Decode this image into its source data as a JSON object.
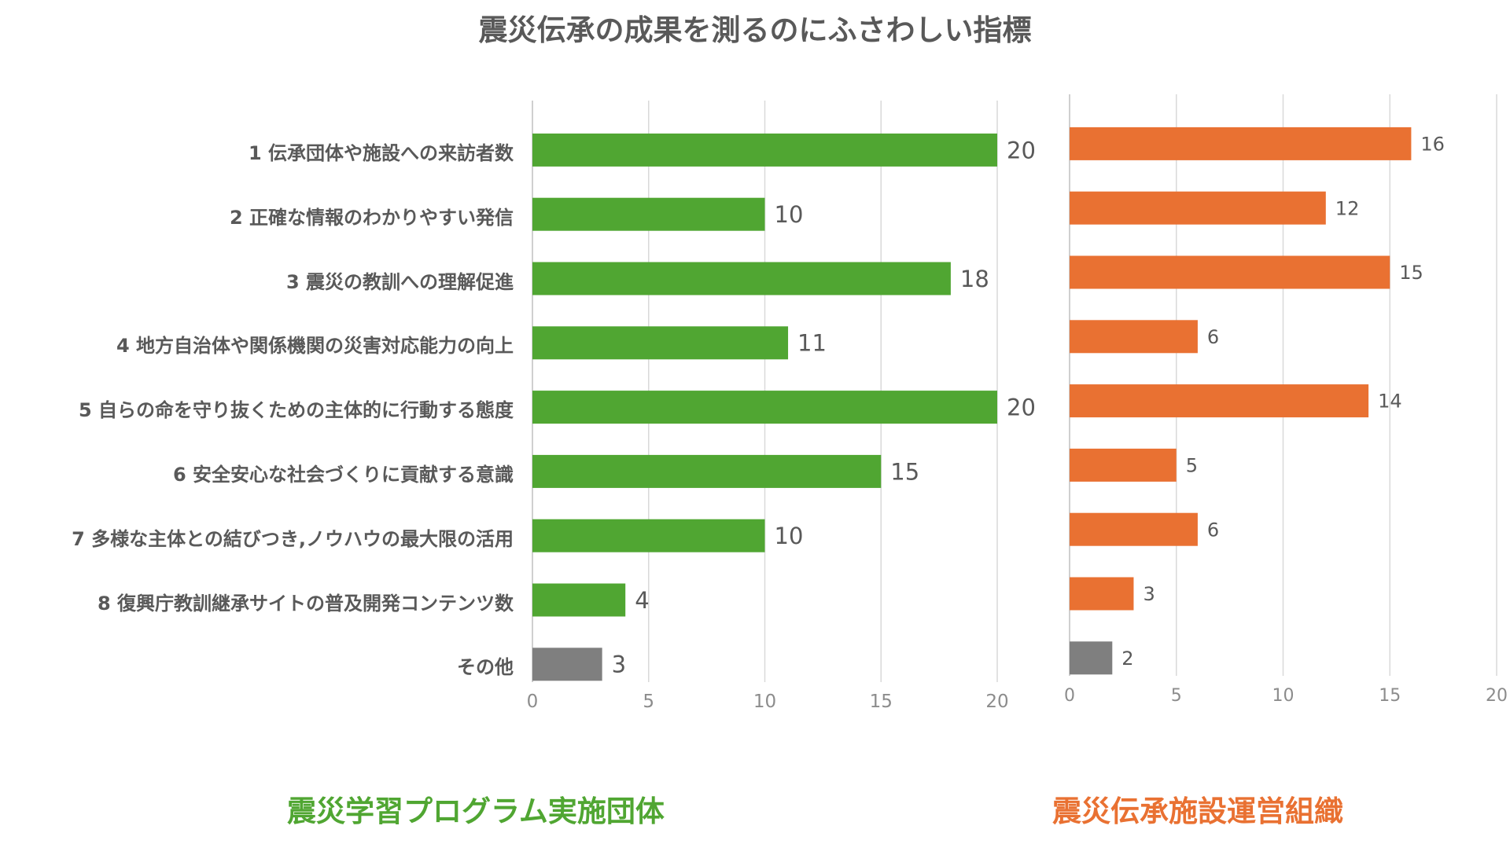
{
  "title": "震災伝承の成果を測るのにふさわしい指標",
  "colors": {
    "green": "#50a632",
    "orange": "#e97132",
    "gray": "#7f7f7f",
    "text": "#595959",
    "grid": "#d9d9d9",
    "axis": "#bfbfbf",
    "tick": "#8c8c8c"
  },
  "chart_data": [
    {
      "type": "bar",
      "orientation": "horizontal",
      "title": "震災学習プログラム実施団体",
      "categories": [
        "1 伝承団体や施設への来訪者数",
        "2 正確な情報のわかりやすい発信",
        "3 震災の教訓への理解促進",
        "4 地方自治体や関係機関の災害対応能力の向上",
        "5  自らの命を守り抜くための主体的に行動する態度",
        "6 安全安心な社会づくりに貢献する意識",
        "7 多様な主体との結びつき,ノウハウの最大限の活用",
        "8 復興庁教訓継承サイトの普及開発コンテンツ数",
        "その他"
      ],
      "values": [
        20,
        10,
        18,
        11,
        20,
        15,
        10,
        4,
        3
      ],
      "bar_colors": [
        "green",
        "green",
        "green",
        "green",
        "green",
        "green",
        "green",
        "green",
        "gray"
      ],
      "xlim": [
        0,
        20
      ],
      "xticks": [
        0,
        5,
        10,
        15,
        20
      ],
      "grid": true,
      "data_labels": true
    },
    {
      "type": "bar",
      "orientation": "horizontal",
      "title": "震災伝承施設運営組織",
      "categories": [
        "1 伝承団体や施設への来訪者数",
        "2 正確な情報のわかりやすい発信",
        "3 震災の教訓への理解促進",
        "4 地方自治体や関係機関の災害対応能力の向上",
        "5  自らの命を守り抜くための主体的に行動する態度",
        "6 安全安心な社会づくりに貢献する意識",
        "7 多様な主体との結びつき,ノウハウの最大限の活用",
        "8 復興庁教訓継承サイトの普及開発コンテンツ数",
        "その他"
      ],
      "values": [
        16,
        12,
        15,
        6,
        14,
        5,
        6,
        3,
        2
      ],
      "bar_colors": [
        "orange",
        "orange",
        "orange",
        "orange",
        "orange",
        "orange",
        "orange",
        "orange",
        "gray"
      ],
      "xlim": [
        0,
        20
      ],
      "xticks": [
        0,
        5,
        10,
        15,
        20
      ],
      "grid": true,
      "data_labels": true
    }
  ]
}
